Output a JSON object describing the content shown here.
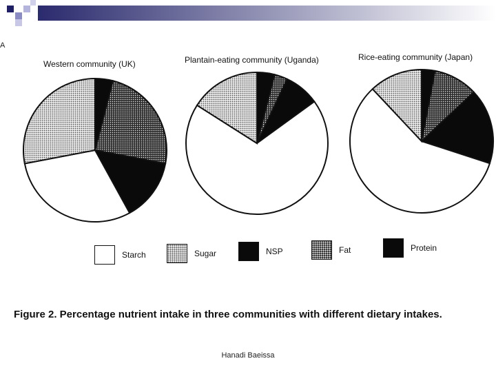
{
  "header": {
    "bar_color_start": "#2a2a6e",
    "bar_color_end": "#ffffff"
  },
  "side_mark": "A",
  "chart_data": {
    "type": "pie",
    "title": "",
    "categories": [
      "Starch",
      "Sugar",
      "NSP",
      "Fat",
      "Protein"
    ],
    "legend": [
      {
        "label": "Starch",
        "pattern": "white"
      },
      {
        "label": "Sugar",
        "pattern": "light-stipple"
      },
      {
        "label": "NSP",
        "pattern": "black"
      },
      {
        "label": "Fat",
        "pattern": "dark-stipple"
      },
      {
        "label": "Protein",
        "pattern": "black"
      }
    ],
    "legend_placement": "bottom",
    "charts": [
      {
        "title": "Western community (UK)",
        "slices": [
          {
            "category": "Protein",
            "value": 4
          },
          {
            "category": "Fat",
            "value": 24
          },
          {
            "category": "NSP",
            "value": 14
          },
          {
            "category": "Starch",
            "value": 30
          },
          {
            "category": "Sugar",
            "value": 28
          }
        ]
      },
      {
        "title": "Plantain-eating community (Uganda)",
        "slices": [
          {
            "category": "Protein",
            "value": 4
          },
          {
            "category": "Fat",
            "value": 3
          },
          {
            "category": "NSP",
            "value": 8
          },
          {
            "category": "Starch",
            "value": 69
          },
          {
            "category": "Sugar",
            "value": 16
          }
        ]
      },
      {
        "title": "Rice-eating community (Japan)",
        "slices": [
          {
            "category": "Protein",
            "value": 3
          },
          {
            "category": "Fat",
            "value": 10
          },
          {
            "category": "NSP",
            "value": 17
          },
          {
            "category": "Starch",
            "value": 58
          },
          {
            "category": "Sugar",
            "value": 12
          }
        ]
      }
    ]
  },
  "caption": "Figure 2. Percentage nutrient intake in three communities with different dietary intakes.",
  "footer": "Hanadi Baeissa"
}
